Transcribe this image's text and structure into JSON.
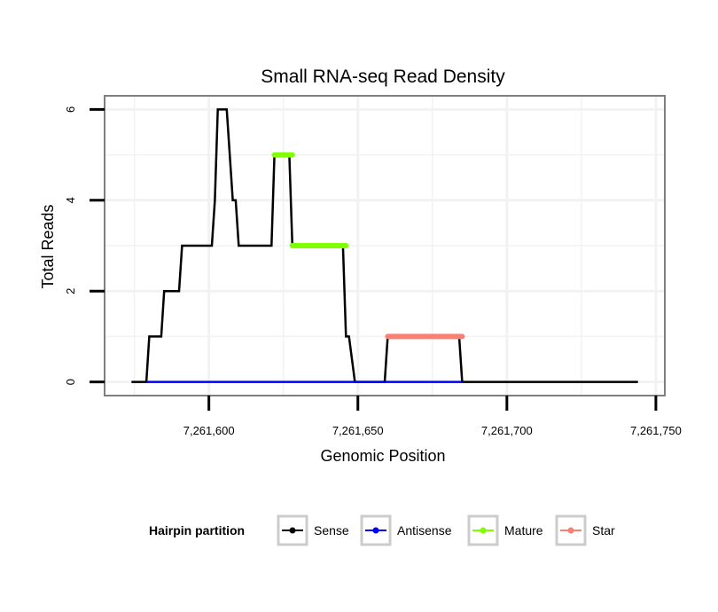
{
  "chart_data": {
    "type": "line",
    "title": "Small RNA-seq Read Density",
    "xlabel": "Genomic Position",
    "ylabel": "Total Reads",
    "xlim": [
      7261565,
      7261753
    ],
    "ylim": [
      -0.3,
      6.3
    ],
    "x_ticks": [
      7261600,
      7261650,
      7261700,
      7261750
    ],
    "x_tick_labels": [
      "7,261,600",
      "7,261,650",
      "7,261,700",
      "7,261,750"
    ],
    "y_ticks": [
      0,
      2,
      4,
      6
    ],
    "y_tick_labels": [
      "0",
      "2",
      "4",
      "6"
    ],
    "grid": true,
    "legend": {
      "title": "Hairpin partition",
      "position": "bottom",
      "entries": [
        "Sense",
        "Antisense",
        "Mature",
        "Star"
      ]
    },
    "series": [
      {
        "name": "Sense",
        "color": "#000000",
        "style": "thin",
        "x": [
          7261574,
          7261579,
          7261580,
          7261584,
          7261585,
          7261590,
          7261591,
          7261601,
          7261602,
          7261603,
          7261606,
          7261608,
          7261609,
          7261610,
          7261621,
          7261622,
          7261627,
          7261628,
          7261645,
          7261646,
          7261647,
          7261649,
          7261659,
          7261660,
          7261684,
          7261685,
          7261744
        ],
        "y": [
          0,
          0,
          1,
          1,
          2,
          2,
          3,
          3,
          4,
          6,
          6,
          4,
          4,
          3,
          3,
          5,
          5,
          3,
          3,
          1,
          1,
          0,
          0,
          1,
          1,
          0,
          0
        ]
      },
      {
        "name": "Antisense",
        "color": "#0000ff",
        "style": "thin",
        "x": [
          7261579,
          7261685
        ],
        "y": [
          0,
          0
        ]
      },
      {
        "name": "Mature",
        "color": "#7fff00",
        "style": "thick",
        "segments": [
          {
            "x": [
              7261622,
              7261628
            ],
            "y": [
              5,
              5
            ]
          },
          {
            "x": [
              7261628,
              7261646
            ],
            "y": [
              3,
              3
            ]
          }
        ]
      },
      {
        "name": "Star",
        "color": "#fa8072",
        "style": "thick",
        "segments": [
          {
            "x": [
              7261660,
              7261685
            ],
            "y": [
              1,
              1
            ]
          }
        ]
      }
    ]
  }
}
